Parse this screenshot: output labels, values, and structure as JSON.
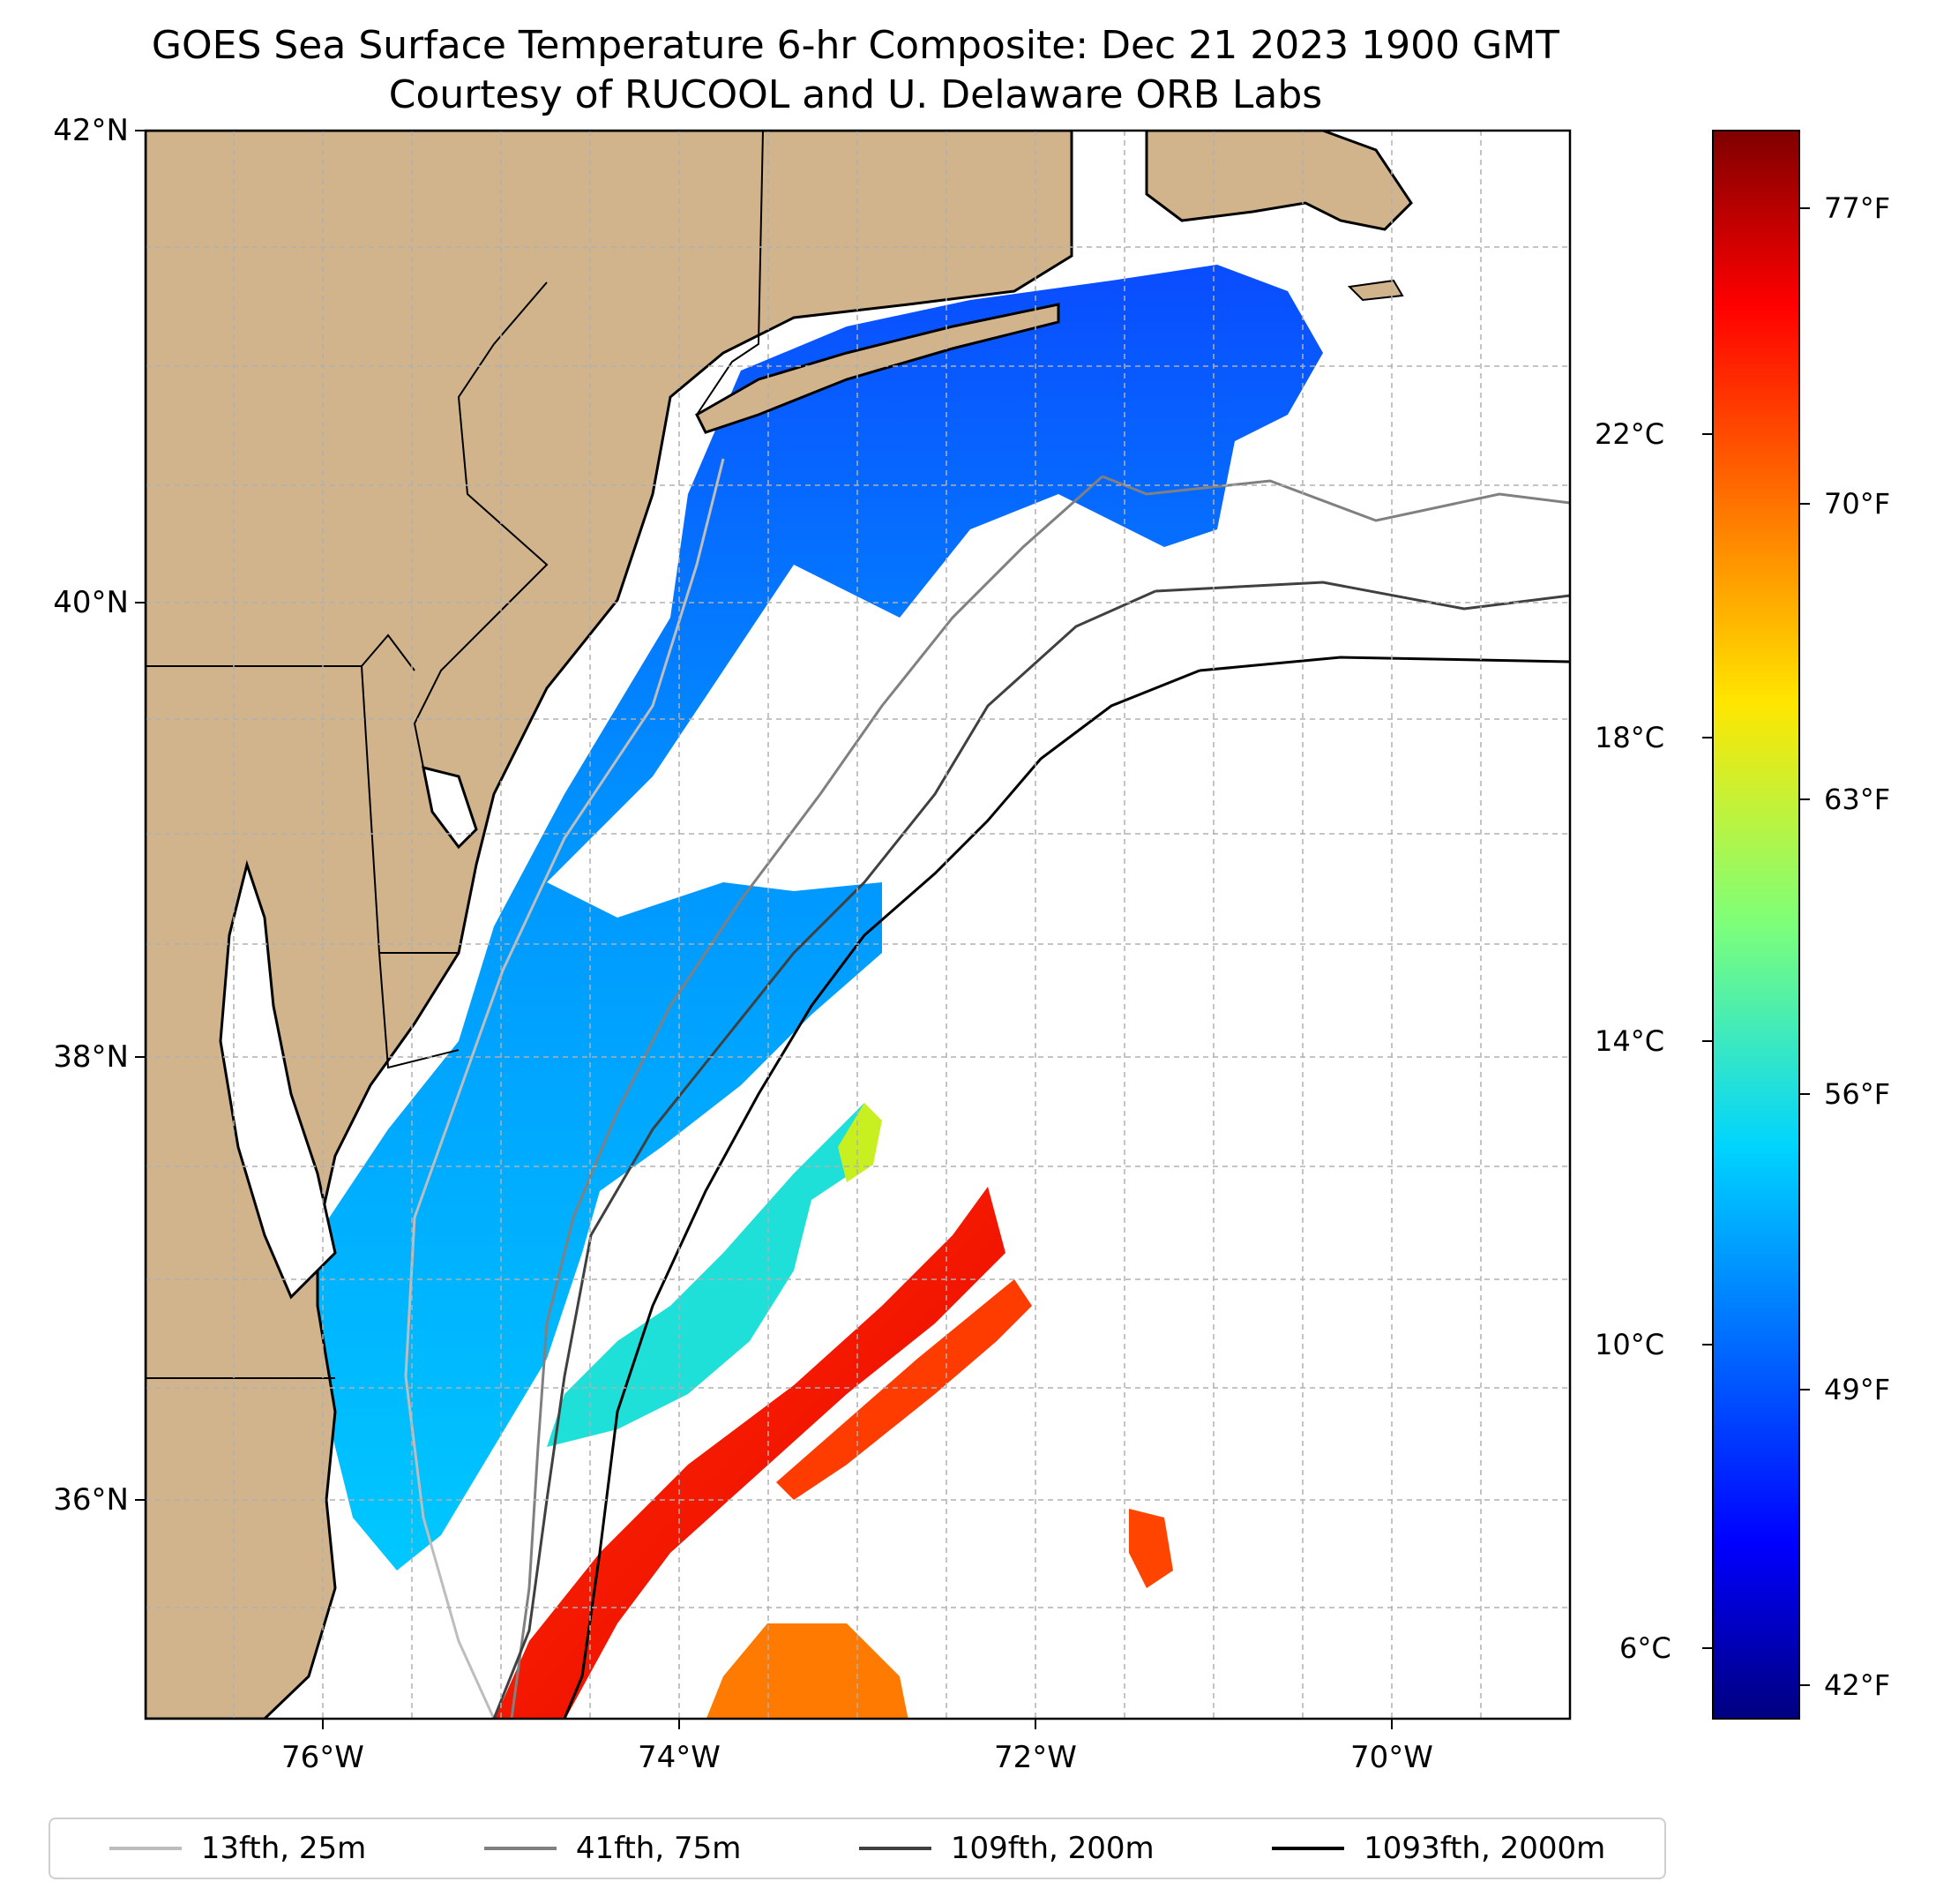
{
  "title": {
    "line1": "GOES Sea Surface Temperature 6-hr Composite: Dec 21 2023 1900 GMT",
    "line2": "Courtesy of RUCOOL and U. Delaware ORB Labs"
  },
  "map": {
    "extent": {
      "lon_min": -77,
      "lon_max": -69,
      "lat_min": 35,
      "lat_max": 42
    },
    "gridlines": true,
    "land_color": "#d2b48c",
    "lat_labels": [
      "42°N",
      "40°N",
      "38°N",
      "36°N"
    ],
    "lon_labels": [
      "76°W",
      "74°W",
      "72°W",
      "70°W"
    ]
  },
  "colorbar": {
    "colormap": "jet",
    "range_celsius": [
      4.6,
      26.4
    ],
    "celsius_ticks": [
      "22°C",
      "18°C",
      "14°C",
      "10°C",
      "6°C"
    ],
    "fahrenheit_ticks": [
      "77°F",
      "70°F",
      "63°F",
      "56°F",
      "49°F",
      "42°F"
    ]
  },
  "legend": {
    "items": [
      {
        "label": "13fth, 25m",
        "color": "#bdbdbd"
      },
      {
        "label": "41fth, 75m",
        "color": "#808080"
      },
      {
        "label": "109fth, 200m",
        "color": "#404040"
      },
      {
        "label": "1093fth, 2000m",
        "color": "#000000"
      }
    ]
  }
}
